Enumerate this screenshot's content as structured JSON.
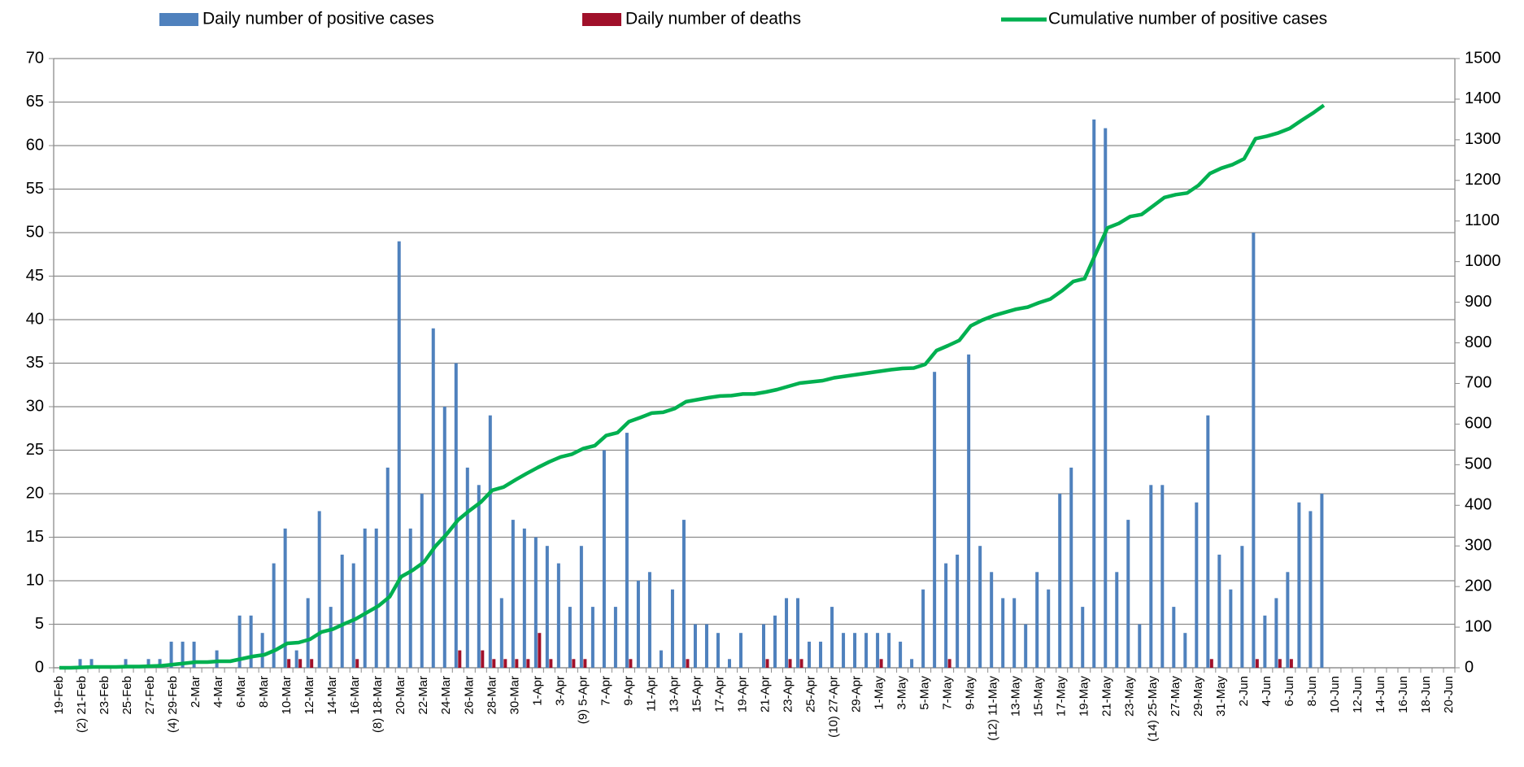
{
  "chart_data": {
    "type": "bar",
    "categories": [
      "19-Feb",
      null,
      "(2) 21-Feb",
      null,
      "23-Feb",
      null,
      "25-Feb",
      null,
      "27-Feb",
      null,
      "(4) 29-Feb",
      null,
      "2-Mar",
      null,
      "4-Mar",
      null,
      "6-Mar",
      null,
      "8-Mar",
      null,
      "10-Mar",
      null,
      "12-Mar",
      null,
      "14-Mar",
      null,
      "16-Mar",
      null,
      "(8) 18-Mar",
      null,
      "20-Mar",
      null,
      "22-Mar",
      null,
      "24-Mar",
      null,
      "26-Mar",
      null,
      "28-Mar",
      null,
      "30-Mar",
      null,
      "1-Apr",
      null,
      "3-Apr",
      null,
      "(9) 5-Apr",
      null,
      "7-Apr",
      null,
      "9-Apr",
      null,
      "11-Apr",
      null,
      "13-Apr",
      null,
      "15-Apr",
      null,
      "17-Apr",
      null,
      "19-Apr",
      null,
      "21-Apr",
      null,
      "23-Apr",
      null,
      "25-Apr",
      null,
      "(10) 27-Apr",
      null,
      "29-Apr",
      null,
      "1-May",
      null,
      "3-May",
      null,
      "5-May",
      null,
      "7-May",
      null,
      "9-May",
      null,
      "(12) 11-May",
      null,
      "13-May",
      null,
      "15-May",
      null,
      "17-May",
      null,
      "19-May",
      null,
      "21-May",
      null,
      "23-May",
      null,
      "(14) 25-May",
      null,
      "27-May",
      null,
      "29-May",
      null,
      "31-May",
      null,
      "2-Jun",
      null,
      "4-Jun",
      null,
      "6-Jun",
      null,
      "8-Jun",
      null,
      "10-Jun",
      null,
      "12-Jun",
      null,
      "14-Jun",
      null,
      "16-Jun",
      null,
      "18-Jun",
      null,
      "20-Jun"
    ],
    "series": [
      {
        "name": "Daily number of positive cases",
        "type": "bar",
        "color": "#4f81bd",
        "values": [
          0,
          0,
          1,
          1,
          0,
          0,
          1,
          0,
          1,
          1,
          3,
          3,
          3,
          0,
          2,
          0,
          6,
          6,
          4,
          12,
          16,
          2,
          8,
          18,
          7,
          13,
          12,
          16,
          16,
          23,
          49,
          16,
          20,
          39,
          30,
          35,
          23,
          21,
          29,
          8,
          17,
          16,
          15,
          14,
          12,
          7,
          14,
          7,
          25,
          7,
          27,
          10,
          11,
          2,
          9,
          17,
          5,
          5,
          4,
          1,
          4,
          0,
          5,
          6,
          8,
          8,
          3,
          3,
          7,
          4,
          4,
          4,
          4,
          4,
          3,
          1,
          9,
          34,
          12,
          13,
          36,
          14,
          11,
          8,
          8,
          5,
          11,
          9,
          20,
          23,
          7,
          63,
          62,
          11,
          17,
          5,
          21,
          21,
          7,
          4,
          19,
          29,
          13,
          9,
          14,
          50,
          6,
          8,
          11,
          19,
          18,
          20,
          null,
          null,
          null,
          null,
          null,
          null,
          null,
          null,
          null,
          null,
          null
        ]
      },
      {
        "name": "Daily number of deaths",
        "type": "bar",
        "color": "#a0102a",
        "values": [
          0,
          0,
          0,
          0,
          0,
          0,
          0,
          0,
          0,
          0,
          0,
          0,
          0,
          0,
          0,
          0,
          0,
          0,
          0,
          0,
          1,
          1,
          1,
          0,
          0,
          0,
          1,
          0,
          0,
          0,
          0,
          0,
          0,
          0,
          0,
          2,
          0,
          2,
          1,
          1,
          1,
          1,
          4,
          1,
          0,
          1,
          1,
          0,
          0,
          0,
          1,
          0,
          0,
          0,
          0,
          1,
          0,
          0,
          0,
          0,
          0,
          0,
          1,
          0,
          1,
          1,
          0,
          0,
          0,
          0,
          0,
          0,
          1,
          0,
          0,
          0,
          0,
          0,
          1,
          0,
          0,
          0,
          0,
          0,
          0,
          0,
          0,
          0,
          0,
          0,
          0,
          0,
          0,
          0,
          0,
          0,
          0,
          0,
          0,
          0,
          0,
          1,
          0,
          0,
          0,
          1,
          0,
          1,
          1,
          0,
          0,
          0,
          null,
          null,
          null,
          null,
          null,
          null,
          null,
          null,
          null,
          null,
          null
        ]
      },
      {
        "name": "Cumulative number of positive cases",
        "type": "line",
        "axis": "y2",
        "color": "#00b050",
        "values": [
          0,
          0,
          1,
          2,
          2,
          2,
          3,
          3,
          4,
          5,
          8,
          11,
          14,
          14,
          16,
          16,
          22,
          28,
          32,
          44,
          60,
          62,
          70,
          88,
          95,
          108,
          120,
          136,
          152,
          175,
          224,
          240,
          260,
          299,
          329,
          364,
          387,
          408,
          437,
          445,
          462,
          478,
          493,
          507,
          519,
          526,
          540,
          547,
          572,
          579,
          606,
          616,
          627,
          629,
          638,
          655,
          660,
          665,
          669,
          670,
          674,
          674,
          679,
          685,
          693,
          701,
          704,
          707,
          714,
          718,
          722,
          726,
          730,
          734,
          737,
          738,
          747,
          781,
          793,
          806,
          842,
          856,
          867,
          875,
          883,
          888,
          899,
          908,
          928,
          951,
          958,
          1021,
          1083,
          1094,
          1111,
          1116,
          1137,
          1158,
          1165,
          1169,
          1188,
          1217,
          1230,
          1239,
          1253,
          1303,
          1309,
          1317,
          1328,
          1347,
          1365,
          1385,
          null,
          null,
          null,
          null,
          null,
          null,
          null,
          null,
          null,
          null,
          null
        ]
      }
    ],
    "ylim": [
      0,
      70
    ],
    "yticks": [
      0,
      5,
      10,
      15,
      20,
      25,
      30,
      35,
      40,
      45,
      50,
      55,
      60,
      65,
      70
    ],
    "y2lim": [
      0,
      1500
    ],
    "y2ticks": [
      0,
      100,
      200,
      300,
      400,
      500,
      600,
      700,
      800,
      900,
      1000,
      1100,
      1200,
      1300,
      1400,
      1500
    ],
    "grid": true,
    "legend": "top"
  }
}
